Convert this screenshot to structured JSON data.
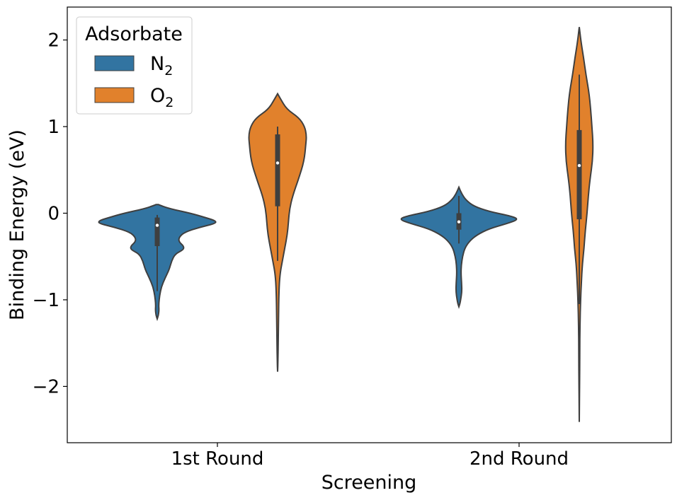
{
  "chart_data": {
    "type": "violin",
    "xlabel": "Screening",
    "ylabel": "Binding Energy (eV)",
    "ylim": [
      -2.65,
      2.38
    ],
    "yticks": [
      -2,
      -1,
      0,
      1,
      2
    ],
    "yticks_label": [
      "−2",
      "−1",
      "0",
      "1",
      "2"
    ],
    "categories": [
      "1st Round",
      "2nd Round"
    ],
    "legend": {
      "title": "Adsorbate",
      "placement": "top-left",
      "entries": [
        {
          "base": "N",
          "sub": "2"
        },
        {
          "base": "O",
          "sub": "2"
        }
      ]
    },
    "colors": {
      "N2": "#3274a1",
      "O2": "#e1812c",
      "edge": "#3f3f3f"
    },
    "series": [
      {
        "key": "N2",
        "color": "#3274a1",
        "violins": [
          {
            "category": "1st Round",
            "profile": [
              [
                0.1,
                0.02
              ],
              [
                0.09,
                0.05
              ],
              [
                0.05,
                0.22
              ],
              [
                0.0,
                0.55
              ],
              [
                -0.05,
                0.8
              ],
              [
                -0.09,
                0.98
              ],
              [
                -0.12,
                0.96
              ],
              [
                -0.16,
                0.72
              ],
              [
                -0.22,
                0.45
              ],
              [
                -0.28,
                0.36
              ],
              [
                -0.33,
                0.36
              ],
              [
                -0.38,
                0.44
              ],
              [
                -0.42,
                0.44
              ],
              [
                -0.47,
                0.3
              ],
              [
                -0.55,
                0.24
              ],
              [
                -0.65,
                0.2
              ],
              [
                -0.75,
                0.13
              ],
              [
                -0.85,
                0.07
              ],
              [
                -0.95,
                0.04
              ],
              [
                -1.05,
                0.025
              ],
              [
                -1.12,
                0.03
              ],
              [
                -1.18,
                0.02
              ],
              [
                -1.22,
                0.0
              ]
            ],
            "box": {
              "q1": -0.38,
              "q3": -0.05,
              "median": -0.14,
              "whisker_low": -0.9,
              "whisker_high": -0.02
            }
          },
          {
            "category": "2nd Round",
            "profile": [
              [
                0.3,
                0.0
              ],
              [
                0.22,
                0.05
              ],
              [
                0.15,
                0.12
              ],
              [
                0.08,
                0.25
              ],
              [
                0.02,
                0.5
              ],
              [
                -0.03,
                0.85
              ],
              [
                -0.07,
                1.0
              ],
              [
                -0.12,
                0.8
              ],
              [
                -0.18,
                0.5
              ],
              [
                -0.25,
                0.3
              ],
              [
                -0.32,
                0.18
              ],
              [
                -0.4,
                0.1
              ],
              [
                -0.5,
                0.06
              ],
              [
                -0.6,
                0.04
              ],
              [
                -0.7,
                0.035
              ],
              [
                -0.8,
                0.045
              ],
              [
                -0.9,
                0.05
              ],
              [
                -1.0,
                0.03
              ],
              [
                -1.05,
                0.015
              ],
              [
                -1.08,
                0.0
              ]
            ],
            "box": {
              "q1": -0.19,
              "q3": 0.0,
              "median": -0.1,
              "whisker_low": -0.35,
              "whisker_high": 0.2
            }
          }
        ]
      },
      {
        "key": "O2",
        "color": "#e1812c",
        "violins": [
          {
            "category": "1st Round",
            "profile": [
              [
                1.38,
                0.0
              ],
              [
                1.33,
                0.04
              ],
              [
                1.2,
                0.15
              ],
              [
                1.1,
                0.36
              ],
              [
                1.0,
                0.45
              ],
              [
                0.9,
                0.48
              ],
              [
                0.8,
                0.47
              ],
              [
                0.6,
                0.44
              ],
              [
                0.4,
                0.35
              ],
              [
                0.2,
                0.25
              ],
              [
                0.05,
                0.2
              ],
              [
                -0.1,
                0.18
              ],
              [
                -0.25,
                0.16
              ],
              [
                -0.4,
                0.12
              ],
              [
                -0.55,
                0.08
              ],
              [
                -0.7,
                0.04
              ],
              [
                -0.9,
                0.022
              ],
              [
                -1.2,
                0.015
              ],
              [
                -1.5,
                0.01
              ],
              [
                -1.7,
                0.006
              ],
              [
                -1.83,
                0.0
              ]
            ],
            "box": {
              "q1": 0.08,
              "q3": 0.91,
              "median": 0.58,
              "whisker_low": -0.55,
              "whisker_high": 1.0
            }
          },
          {
            "category": "2nd Round",
            "profile": [
              [
                2.15,
                0.0
              ],
              [
                2.0,
                0.025
              ],
              [
                1.8,
                0.07
              ],
              [
                1.6,
                0.11
              ],
              [
                1.4,
                0.16
              ],
              [
                1.2,
                0.19
              ],
              [
                1.0,
                0.21
              ],
              [
                0.8,
                0.23
              ],
              [
                0.6,
                0.22
              ],
              [
                0.4,
                0.18
              ],
              [
                0.2,
                0.15
              ],
              [
                0.0,
                0.13
              ],
              [
                -0.2,
                0.1
              ],
              [
                -0.4,
                0.08
              ],
              [
                -0.6,
                0.05
              ],
              [
                -0.8,
                0.035
              ],
              [
                -1.0,
                0.022
              ],
              [
                -1.3,
                0.012
              ],
              [
                -1.6,
                0.008
              ],
              [
                -2.0,
                0.005
              ],
              [
                -2.41,
                0.0
              ]
            ],
            "box": {
              "q1": -0.07,
              "q3": 0.96,
              "median": 0.55,
              "whisker_low": -1.05,
              "whisker_high": 1.6
            }
          }
        ]
      }
    ]
  }
}
